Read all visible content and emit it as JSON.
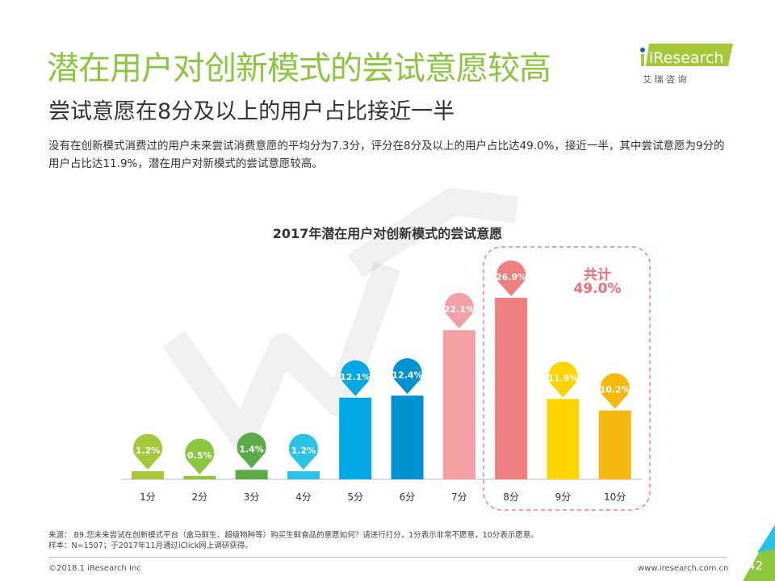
{
  "header": {
    "title": "潜在用户对创新模式的尝试意愿较高",
    "subtitle": "尝试意愿在8分及以上的用户占比接近一半",
    "description": "没有在创新模式消费过的用户未来尝试消费意愿的平均分为7.3分，评分在8分及以上的用户占比达49.0%，接近一半，其中尝试意愿为9分的用户占比达11.9%，潜在用户对新模式的尝试意愿较高。"
  },
  "logo": {
    "name": "iResearch",
    "cn": "艾 瑞 咨 询"
  },
  "chart_data": {
    "type": "bar",
    "title": "2017年潜在用户对创新模式的尝试意愿",
    "categories": [
      "1分",
      "2分",
      "3分",
      "4分",
      "5分",
      "6分",
      "7分",
      "8分",
      "9分",
      "10分"
    ],
    "values": [
      1.2,
      0.5,
      1.4,
      1.2,
      12.1,
      12.4,
      22.1,
      26.9,
      11.9,
      10.2
    ],
    "labels": [
      "1.2%",
      "0.5%",
      "1.4%",
      "1.2%",
      "12.1%",
      "12.4%",
      "22.1%",
      "26.9%",
      "11.9%",
      "10.2%"
    ],
    "colors": [
      "#a5c83b",
      "#8cc63f",
      "#5aab46",
      "#29c3e6",
      "#00a9e6",
      "#0092d0",
      "#f4a0a4",
      "#f08080",
      "#ffd400",
      "#f5b80f"
    ],
    "annotation": {
      "label": "共计",
      "value": "49.0%",
      "highlight_categories": [
        "8分",
        "9分",
        "10分"
      ]
    },
    "ylim": [
      0,
      30
    ]
  },
  "footer": {
    "source": "来源： B9.您未来尝试在创新模式平台（盒马鲜生、超级物种等）购买生鲜食品的意愿如何？请进行打分，1分表示非常不愿意，10分表示愿意。",
    "sample": "样本：N=1507；于2017年11月通过iClick网上调研获得。",
    "copyright": "©2018.1 iResearch Inc",
    "website": "www.iresearch.com.cn",
    "page": "42"
  }
}
